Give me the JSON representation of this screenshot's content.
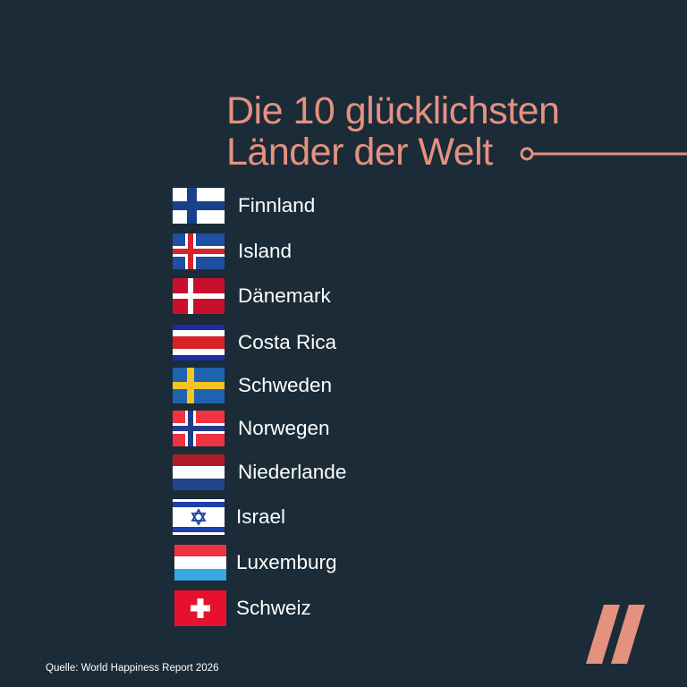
{
  "title": {
    "line1": "Die 10 glücklichsten",
    "line2": "Länder der Welt",
    "color": "#e4917f"
  },
  "countries": [
    {
      "name": "Finnland",
      "flag": "finland-flag-icon"
    },
    {
      "name": "Island",
      "flag": "iceland-flag-icon"
    },
    {
      "name": "Dänemark",
      "flag": "denmark-flag-icon"
    },
    {
      "name": "Costa Rica",
      "flag": "costa-rica-flag-icon"
    },
    {
      "name": "Schweden",
      "flag": "sweden-flag-icon"
    },
    {
      "name": "Norwegen",
      "flag": "norway-flag-icon"
    },
    {
      "name": "Niederlande",
      "flag": "netherlands-flag-icon"
    },
    {
      "name": "Israel",
      "flag": "israel-flag-icon"
    },
    {
      "name": "Luxemburg",
      "flag": "luxembourg-flag-icon"
    },
    {
      "name": "Schweiz",
      "flag": "switzerland-flag-icon"
    }
  ],
  "source": "Quelle: World Happiness Report 2026",
  "logo": {
    "icon": "double-slash-logo-icon",
    "color": "#e4917f"
  },
  "colors": {
    "background": "#1b2b37",
    "text": "#ffffff",
    "accent": "#e4917f"
  }
}
